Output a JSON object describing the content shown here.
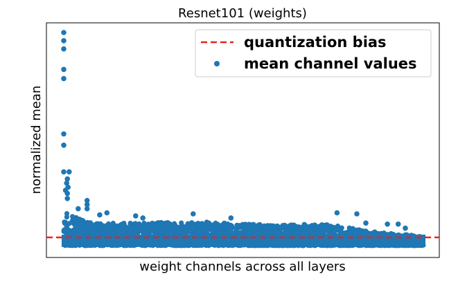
{
  "chart_data": {
    "type": "scatter",
    "title": "Resnet101 (weights)",
    "xlabel": "weight channels across all layers",
    "ylabel": "normalized mean",
    "xticks": [],
    "yticks": [],
    "xlim": [
      0,
      1.04
    ],
    "ylim": [
      -0.1,
      1.0
    ],
    "grid": false,
    "legend_position": "top-right",
    "series": [
      {
        "name": "quantization bias",
        "kind": "line",
        "style": "dashed",
        "color": "#e8231c",
        "y": 0.0
      },
      {
        "name": "mean channel values",
        "kind": "scatter",
        "color": "#1f77b4",
        "points": [
          [
            0.0,
            1.0
          ],
          [
            0.0,
            0.96
          ],
          [
            0.0,
            0.92
          ],
          [
            0.0,
            0.82
          ],
          [
            0.0,
            0.775
          ],
          [
            0.0,
            0.505
          ],
          [
            0.0,
            0.45
          ],
          [
            0.0,
            0.32
          ],
          [
            0.015,
            0.32
          ],
          [
            0.01,
            0.285
          ],
          [
            0.008,
            0.265
          ],
          [
            0.012,
            0.245
          ],
          [
            0.005,
            0.23
          ],
          [
            0.01,
            0.215
          ],
          [
            0.01,
            0.19
          ],
          [
            0.065,
            0.18
          ],
          [
            0.065,
            0.16
          ],
          [
            0.04,
            0.14
          ],
          [
            0.065,
            0.14
          ],
          [
            0.12,
            0.12
          ],
          [
            0.1,
            0.11
          ],
          [
            0.2,
            0.105
          ],
          [
            0.22,
            0.095
          ],
          [
            0.36,
            0.115
          ],
          [
            0.465,
            0.095
          ],
          [
            0.76,
            0.12
          ],
          [
            0.815,
            0.115
          ],
          [
            0.84,
            0.07
          ],
          [
            0.9,
            0.065
          ],
          [
            0.93,
            0.065
          ],
          [
            0.95,
            0.045
          ]
        ],
        "envelope": {
          "x": [
            0.0,
            0.01,
            0.03,
            0.06,
            0.1,
            0.2,
            0.3,
            0.4,
            0.5,
            0.6,
            0.7,
            0.75,
            0.8,
            0.85,
            0.9,
            0.95,
            1.0
          ],
          "upper": [
            0.2,
            0.12,
            0.1,
            0.08,
            0.07,
            0.07,
            0.075,
            0.075,
            0.065,
            0.06,
            0.065,
            0.06,
            0.045,
            0.03,
            0.02,
            0.015,
            0.005
          ],
          "lower": [
            -0.04,
            -0.04,
            -0.04,
            -0.04,
            -0.04,
            -0.04,
            -0.04,
            -0.04,
            -0.04,
            -0.04,
            -0.04,
            -0.04,
            -0.04,
            -0.04,
            -0.04,
            -0.04,
            -0.04
          ]
        }
      }
    ]
  }
}
